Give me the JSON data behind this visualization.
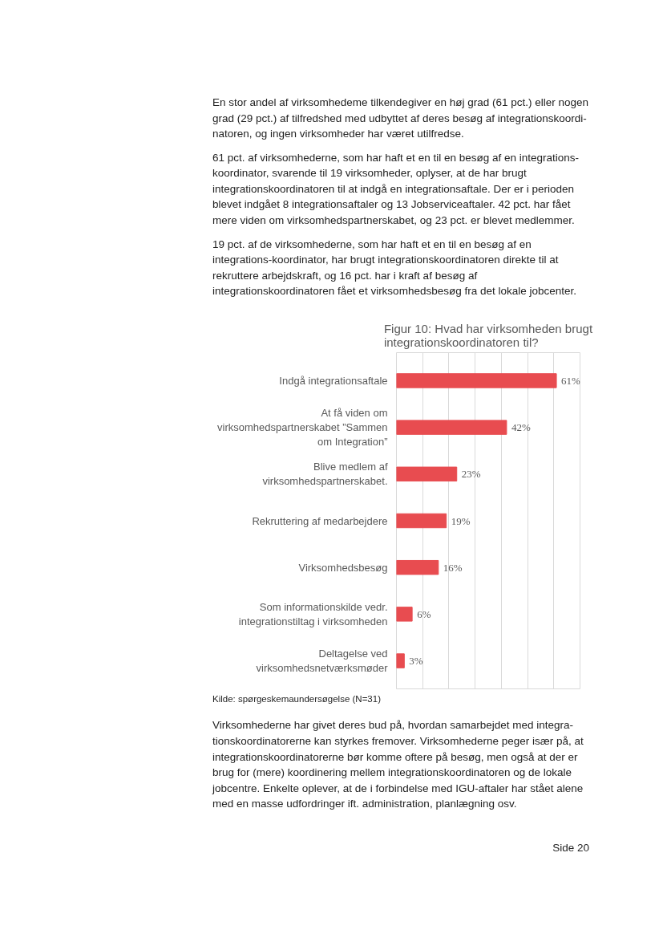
{
  "chart_data": {
    "type": "bar",
    "orientation": "horizontal",
    "title": "Figur 10: Hvad har virksomheden brugt integrationskoordinatoren til?",
    "categories": [
      "Indgå integrationsaftale",
      "At få viden om virksomhedspartnerskabet ”Sammen om Integration”",
      "Blive medlem af virksomhedspartnerskabet.",
      "Rekruttering af medarbejdere",
      "Virksomhedsbesøg",
      "Som informationskilde vedr. integrationstiltag i virksomheden",
      "Deltagelse ved virksomhedsnetværksmøder"
    ],
    "values": [
      61,
      42,
      23,
      19,
      16,
      6,
      3
    ],
    "value_labels": [
      "61%",
      "42%",
      "23%",
      "19%",
      "16%",
      "6%",
      "3%"
    ],
    "color": "#e84c50",
    "xlim": [
      0,
      70
    ],
    "xticks": [
      {
        "value": 0,
        "label": null
      },
      {
        "value": 10,
        "label": null
      },
      {
        "value": 20,
        "label": null
      },
      {
        "value": 30,
        "label": null
      },
      {
        "value": 40,
        "label": null
      },
      {
        "value": 50,
        "label": null
      },
      {
        "value": 60,
        "label": null
      },
      {
        "value": 70,
        "label": null
      }
    ],
    "grid": "x",
    "tick_labels": "y",
    "annotations": [
      "En stor andel af virksomhedeme tilkendegiver en høj grad (61 pct.) eller nogen grad (29 pct.) af tilfredshed med udbyttet af deres besøg af integrationskoordi-natoren, og ingen virksomheder har været utilfredse.",
      "61 pct. af virksomhederne, som har haft et en til en besøg af en integrations-koordinator, svarende til 19 virksomheder, oplyser, at de har brugt integrationskoordinatoren til at indgå en integrationsaftale. Der er i perioden blevet indgået 8 integrationsaftaler og 13 Jobserviceaftaler. 42 pct. har fået mere viden om virksomhedspartnerskabet, og 23 pct. er blevet medlemmer.",
      "19 pct. af de virksomhederne, som har haft et en til en besøg af en integrations-koordinator, har brugt integrationskoordinatoren direkte til at rekruttere arbejdskraft, og 16 pct. har i kraft af besøg af integrationskoordinatoren fået et virksomhedsbesøg fra det lokale jobcenter.",
      "Kilde: spørgeskemaundersøgelse (N=31)",
      "Virksomhederne har givet deres bud på, hvordan samarbejdet med integra-tionskoordinatorerne kan styrkes fremover. Virksomhederne peger især på, at integrationskoordinatorerne bør komme oftere på besøg, men også at der er brug for (mere) koordinering mellem integrationskoordinatoren og de lokale jobcentre. Enkelte oplever, at de i forbindelse med IGU-aftaler har stået alene med en masse udfordringer ift. administration, planlægning osv.",
      "Side 20"
    ]
  }
}
